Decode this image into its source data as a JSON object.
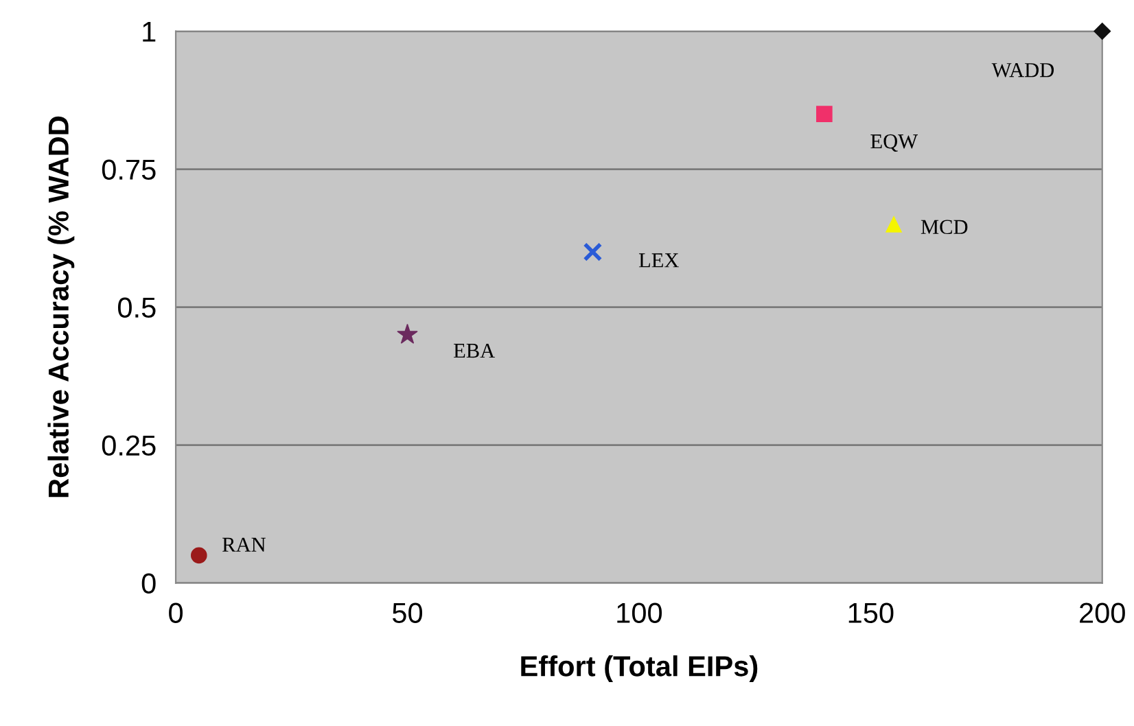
{
  "chart_data": {
    "type": "scatter",
    "xlabel": "Effort (Total EIPs)",
    "ylabel": "Relative Accuracy (% WADD",
    "xlim": [
      0,
      200
    ],
    "xticks": [
      0,
      50,
      100,
      150,
      200
    ],
    "ylim": [
      0,
      1
    ],
    "yticks": [
      0,
      0.25,
      0.5,
      0.75,
      1
    ],
    "grid": "y",
    "legend": false,
    "series": [
      {
        "name": "RAN",
        "x": [
          5
        ],
        "values": [
          0.05
        ],
        "color": "#9b1b1b",
        "marker": "circle"
      },
      {
        "name": "EBA",
        "x": [
          50
        ],
        "values": [
          0.45
        ],
        "color": "#6b2a5e",
        "marker": "star"
      },
      {
        "name": "LEX",
        "x": [
          90
        ],
        "values": [
          0.6
        ],
        "color": "#2a5bd7",
        "marker": "cross"
      },
      {
        "name": "EQW",
        "x": [
          140
        ],
        "values": [
          0.85
        ],
        "color": "#f0306a",
        "marker": "square"
      },
      {
        "name": "MCD",
        "x": [
          155
        ],
        "values": [
          0.65
        ],
        "color": "#f5f500",
        "marker": "triangle"
      },
      {
        "name": "WADD",
        "x": [
          200
        ],
        "values": [
          1
        ],
        "color": "#111111",
        "marker": "diamond"
      }
    ]
  }
}
